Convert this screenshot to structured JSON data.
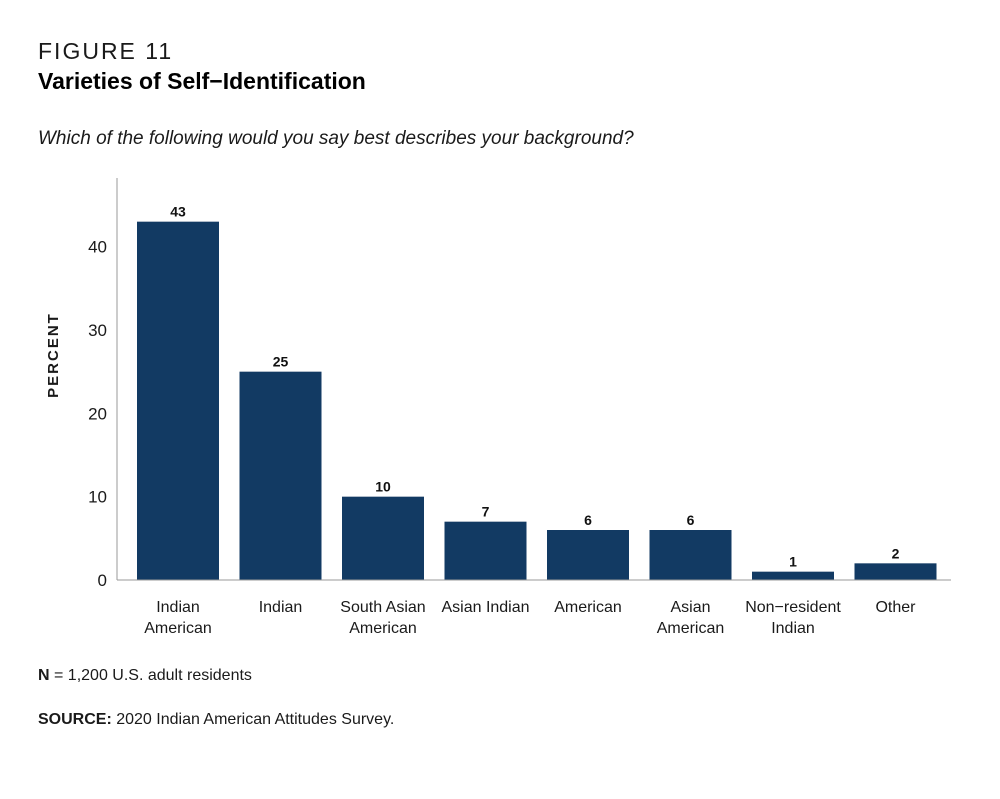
{
  "figure": {
    "label": "FIGURE 11",
    "title": "Varieties of Self−Identification",
    "question": "Which of the following would you say best describes your background?"
  },
  "notes": {
    "n_label": "N",
    "n_text": " = 1,200 U.S. adult residents",
    "source_label": "SOURCE:",
    "source_text": " 2020 Indian American Attitudes Survey."
  },
  "colors": {
    "bar": "#123a63",
    "axis": "#9a9a9a",
    "text": "#1a1a1a"
  },
  "chart_data": {
    "type": "bar",
    "title": "Varieties of Self−Identification",
    "xlabel": "",
    "ylabel": "PERCENT",
    "ylim": [
      0,
      48
    ],
    "yticks": [
      0,
      10,
      20,
      30,
      40
    ],
    "grid": false,
    "categories": [
      [
        "Indian",
        "American"
      ],
      [
        "Indian"
      ],
      [
        "South Asian",
        "American"
      ],
      [
        "Asian Indian"
      ],
      [
        "American"
      ],
      [
        "Asian",
        "American"
      ],
      [
        "Non−resident",
        "Indian"
      ],
      [
        "Other"
      ]
    ],
    "values": [
      43,
      25,
      10,
      7,
      6,
      6,
      1,
      2
    ]
  }
}
